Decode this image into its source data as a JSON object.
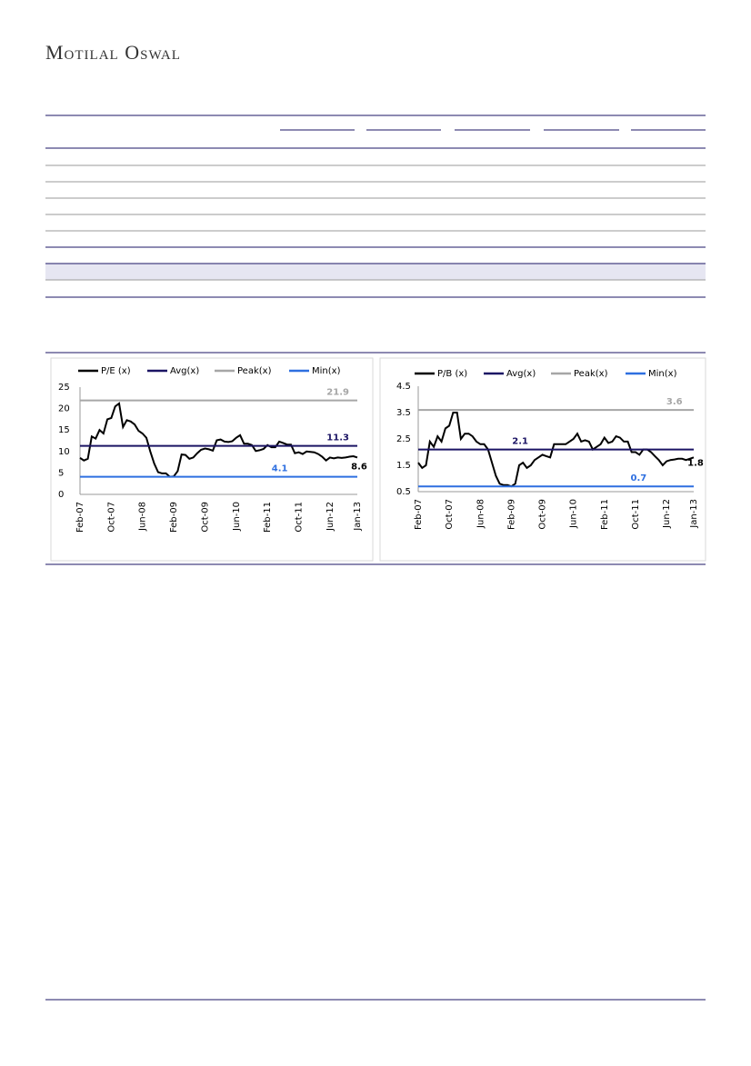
{
  "header": {
    "logo": "Motilal Oswal"
  },
  "chart_data": [
    {
      "type": "line",
      "categories": [
        "Feb-07",
        null,
        null,
        null,
        null,
        null,
        null,
        null,
        "Oct-07",
        null,
        null,
        null,
        null,
        null,
        null,
        null,
        "Jun-08",
        null,
        null,
        null,
        null,
        null,
        null,
        null,
        "Feb-09",
        null,
        null,
        null,
        null,
        null,
        null,
        null,
        "Oct-09",
        null,
        null,
        null,
        null,
        null,
        null,
        null,
        "Jun-10",
        null,
        null,
        null,
        null,
        null,
        null,
        null,
        "Feb-11",
        null,
        null,
        null,
        null,
        null,
        null,
        null,
        "Oct-11",
        null,
        null,
        null,
        null,
        null,
        null,
        null,
        "Jun-12",
        null,
        null,
        null,
        null,
        null,
        null,
        "Jan-13"
      ],
      "series": [
        {
          "name": "P/E (x)",
          "color": "#000000",
          "values": [
            8.5,
            7.9,
            8.3,
            13.5,
            13,
            15,
            14.2,
            17.5,
            17.8,
            20.5,
            21.2,
            15.7,
            17.3,
            17,
            16.3,
            14.8,
            14.2,
            13.2,
            10,
            7.2,
            5.2,
            4.9,
            4.9,
            4.1,
            4.2,
            5.4,
            9.3,
            9.2,
            8.3,
            8.6,
            9.6,
            10.4,
            10.7,
            10.5,
            10.2,
            12.6,
            12.8,
            12.3,
            12.2,
            12.4,
            13.2,
            13.8,
            11.8,
            11.8,
            11.5,
            10.1,
            10.3,
            10.6,
            11.5,
            11,
            11,
            12.3,
            12,
            11.6,
            11.6,
            9.6,
            9.8,
            9.4,
            10,
            9.9,
            9.8,
            9.4,
            8.8,
            7.9,
            8.6,
            8.4,
            8.6,
            8.5,
            8.6,
            8.8,
            8.9,
            8.6
          ]
        },
        {
          "name": "Avg(x)",
          "color": "#1b1464",
          "value": 11.3
        },
        {
          "name": "Peak(x)",
          "color": "#a6a6a6",
          "value": 21.9
        },
        {
          "name": "Min(x)",
          "color": "#2e6fe0",
          "value": 4.1
        }
      ],
      "ylim": [
        0,
        25
      ],
      "yticks": [
        0,
        5,
        10,
        15,
        20,
        25
      ]
    },
    {
      "type": "line",
      "categories": [
        "Feb-07",
        null,
        null,
        null,
        null,
        null,
        null,
        null,
        "Oct-07",
        null,
        null,
        null,
        null,
        null,
        null,
        null,
        "Jun-08",
        null,
        null,
        null,
        null,
        null,
        null,
        null,
        "Feb-09",
        null,
        null,
        null,
        null,
        null,
        null,
        null,
        "Oct-09",
        null,
        null,
        null,
        null,
        null,
        null,
        null,
        "Jun-10",
        null,
        null,
        null,
        null,
        null,
        null,
        null,
        "Feb-11",
        null,
        null,
        null,
        null,
        null,
        null,
        null,
        "Oct-11",
        null,
        null,
        null,
        null,
        null,
        null,
        null,
        "Jun-12",
        null,
        null,
        null,
        null,
        null,
        null,
        "Jan-13"
      ],
      "series": [
        {
          "name": "P/B (x)",
          "color": "#000000",
          "values": [
            1.6,
            1.4,
            1.5,
            2.4,
            2.2,
            2.6,
            2.4,
            2.9,
            3.0,
            3.5,
            3.5,
            2.5,
            2.7,
            2.7,
            2.6,
            2.4,
            2.3,
            2.3,
            2.1,
            1.6,
            1.1,
            0.8,
            0.75,
            0.75,
            0.7,
            0.8,
            1.5,
            1.6,
            1.4,
            1.5,
            1.7,
            1.8,
            1.9,
            1.85,
            1.8,
            2.3,
            2.3,
            2.3,
            2.3,
            2.4,
            2.5,
            2.7,
            2.4,
            2.45,
            2.4,
            2.1,
            2.2,
            2.3,
            2.55,
            2.35,
            2.4,
            2.6,
            2.55,
            2.4,
            2.4,
            2.0,
            2.0,
            1.9,
            2.1,
            2.1,
            2.0,
            1.85,
            1.7,
            1.5,
            1.65,
            1.7,
            1.72,
            1.75,
            1.75,
            1.7,
            1.75,
            1.8
          ]
        },
        {
          "name": "Avg(x)",
          "color": "#1b1464",
          "value": 2.1
        },
        {
          "name": "Peak(x)",
          "color": "#a6a6a6",
          "value": 3.6
        },
        {
          "name": "Min(x)",
          "color": "#2e6fe0",
          "value": 0.7
        }
      ],
      "ylim": [
        0.5,
        4.5
      ],
      "yticks": [
        0.5,
        1.5,
        2.5,
        3.5,
        4.5
      ]
    }
  ]
}
